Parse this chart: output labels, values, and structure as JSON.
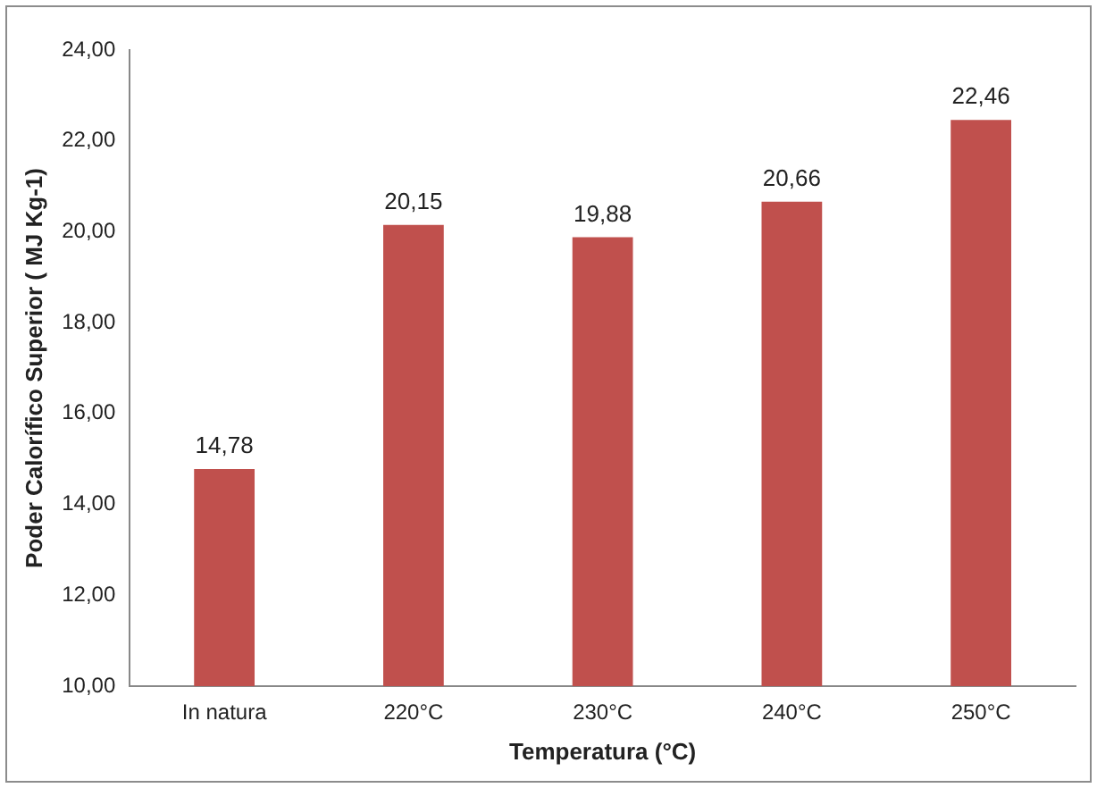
{
  "chart_data": {
    "type": "bar",
    "xlabel": "Temperatura (°C)",
    "ylabel": "Poder Calorífico Superior ( MJ Kg-1)",
    "categories": [
      "In natura",
      "220°C",
      "230°C",
      "240°C",
      "250°C"
    ],
    "values": [
      14.78,
      20.15,
      19.88,
      20.66,
      22.46
    ],
    "value_labels": [
      "14,78",
      "20,15",
      "19,88",
      "20,66",
      "22,46"
    ],
    "color": "#c0504d",
    "ylim": [
      10,
      24
    ],
    "yticks": [
      {
        "value": 10,
        "label": "10,00"
      },
      {
        "value": 12,
        "label": "12,00"
      },
      {
        "value": 14,
        "label": "14,00"
      },
      {
        "value": 16,
        "label": "16,00"
      },
      {
        "value": 18,
        "label": "18,00"
      },
      {
        "value": 20,
        "label": "20,00"
      },
      {
        "value": 22,
        "label": "22,00"
      },
      {
        "value": 24,
        "label": "24,00"
      }
    ],
    "grid": false,
    "legend": false
  }
}
